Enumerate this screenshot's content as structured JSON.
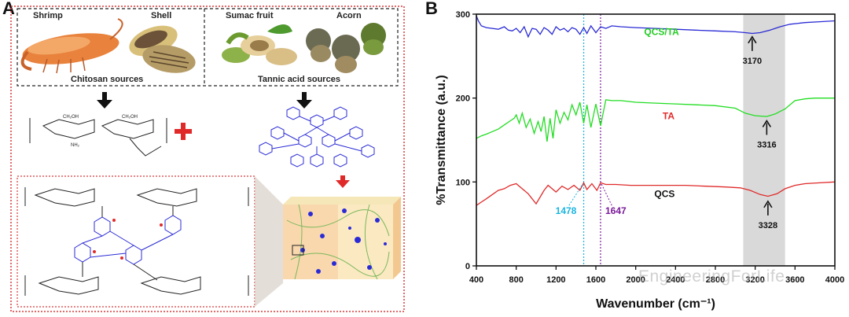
{
  "panelA": {
    "letter": "A",
    "items": [
      "Shrimp",
      "Shell",
      "Sumac fruit",
      "Acorn"
    ],
    "chitosan_sources": "Chitosan sources",
    "tannic_sources": "Tannic acid sources"
  },
  "panelB": {
    "letter": "B"
  },
  "watermark": "EngineeringForLife",
  "colors": {
    "qcsta": "#2b2bd6",
    "ta": "#22dd22",
    "qcs": "#e02a2a",
    "cyan": "#1ab4e0",
    "purple": "#7a1a9a",
    "panelBorder": "#d63b3b",
    "highlight": "#d9d9d9"
  },
  "chart_data": {
    "type": "line",
    "xlabel": "Wavenumber (cm⁻¹)",
    "ylabel": "%Transmittance (a.u.)",
    "xlim": [
      400,
      4000
    ],
    "ylim": [
      0,
      300
    ],
    "xticks": [
      "400",
      "800",
      "1200",
      "1600",
      "2000",
      "2400",
      "2800",
      "3200",
      "3600",
      "4000"
    ],
    "yticks": [
      "0",
      "100",
      "200",
      "300"
    ],
    "highlight_range": [
      3080,
      3500
    ],
    "vlines": [
      {
        "x": 1478,
        "label": "1478",
        "color": "#1ab4e0"
      },
      {
        "x": 1647,
        "label": "1647",
        "color": "#7a1a9a"
      }
    ],
    "series": [
      {
        "name": "QCS/TA",
        "color": "#2b2bd6",
        "x": [
          400,
          420,
          450,
          500,
          560,
          620,
          680,
          720,
          760,
          800,
          840,
          880,
          920,
          960,
          1000,
          1040,
          1080,
          1120,
          1160,
          1200,
          1240,
          1280,
          1320,
          1360,
          1400,
          1440,
          1478,
          1510,
          1550,
          1600,
          1647,
          1700,
          1760,
          1850,
          2000,
          2200,
          2400,
          2600,
          2800,
          3000,
          3100,
          3170,
          3250,
          3350,
          3450,
          3550,
          3700,
          3850,
          4000
        ],
        "y": [
          298,
          292,
          286,
          284,
          283,
          282,
          285,
          281,
          280,
          283,
          278,
          285,
          273,
          283,
          282,
          276,
          284,
          281,
          276,
          285,
          281,
          283,
          279,
          284,
          282,
          276,
          284,
          277,
          286,
          278,
          285,
          283,
          286,
          285,
          284,
          283,
          282,
          281,
          280,
          279,
          278,
          277,
          278,
          281,
          285,
          288,
          290,
          291,
          292
        ]
      },
      {
        "name": "TA",
        "color": "#22dd22",
        "x": [
          400,
          450,
          500,
          560,
          620,
          680,
          730,
          780,
          800,
          830,
          860,
          900,
          940,
          980,
          1020,
          1050,
          1080,
          1110,
          1140,
          1170,
          1200,
          1240,
          1280,
          1320,
          1360,
          1400,
          1440,
          1478,
          1510,
          1550,
          1600,
          1647,
          1700,
          1760,
          1850,
          2000,
          2200,
          2400,
          2600,
          2800,
          3000,
          3100,
          3200,
          3316,
          3400,
          3500,
          3600,
          3700,
          3800,
          4000
        ],
        "y": [
          152,
          155,
          157,
          160,
          163,
          168,
          172,
          176,
          180,
          170,
          182,
          165,
          175,
          158,
          172,
          160,
          178,
          148,
          176,
          152,
          186,
          170,
          183,
          174,
          192,
          180,
          195,
          170,
          192,
          165,
          193,
          167,
          198,
          197,
          197,
          195,
          194,
          193,
          192,
          191,
          188,
          182,
          179,
          178,
          181,
          187,
          197,
          199,
          200,
          200
        ]
      },
      {
        "name": "QCS",
        "color": "#e02a2a",
        "x": [
          400,
          450,
          500,
          560,
          620,
          680,
          740,
          800,
          840,
          880,
          920,
          960,
          1000,
          1040,
          1080,
          1120,
          1160,
          1200,
          1260,
          1320,
          1380,
          1440,
          1478,
          1510,
          1560,
          1610,
          1647,
          1700,
          1800,
          1950,
          2100,
          2300,
          2500,
          2700,
          2900,
          3050,
          3150,
          3250,
          3328,
          3420,
          3500,
          3600,
          3700,
          3850,
          4000
        ],
        "y": [
          72,
          76,
          80,
          85,
          90,
          92,
          96,
          98,
          94,
          90,
          86,
          80,
          74,
          82,
          90,
          96,
          92,
          88,
          95,
          91,
          96,
          90,
          99,
          91,
          98,
          90,
          99,
          97,
          97,
          96,
          96,
          96,
          96,
          95,
          94,
          93,
          90,
          85,
          83,
          86,
          92,
          96,
          98,
          99,
          100
        ]
      }
    ],
    "annotations": [
      {
        "text": "QCS/TA",
        "color": "#22cc22"
      },
      {
        "text": "TA",
        "color": "#e02a2a"
      },
      {
        "text": "QCS",
        "color": "#111111"
      },
      {
        "text": "3170",
        "x": 3170
      },
      {
        "text": "3316",
        "x": 3316
      },
      {
        "text": "3328",
        "x": 3328
      },
      {
        "text": "1478",
        "color": "#1ab4e0"
      },
      {
        "text": "1647",
        "color": "#7a1a9a"
      }
    ]
  }
}
